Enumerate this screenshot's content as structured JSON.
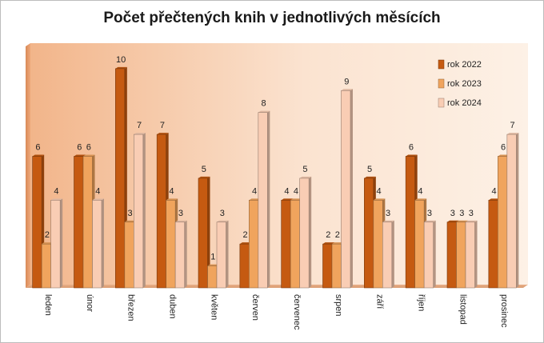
{
  "chart_data": {
    "type": "bar",
    "title": "Počet přečtených knih v jednotlivých měsících",
    "xlabel": "",
    "ylabel": "",
    "ylim": [
      0,
      10
    ],
    "grid": false,
    "legend_position": "top-right",
    "categories": [
      "leden",
      "únor",
      "březen",
      "duben",
      "květen",
      "červen",
      "červenec",
      "srpen",
      "září",
      "říjen",
      "listopad",
      "prosinec"
    ],
    "series": [
      {
        "name": "rok 2022",
        "color": "#c55a11",
        "values": [
          6,
          6,
          10,
          7,
          5,
          2,
          4,
          2,
          5,
          6,
          3,
          4
        ]
      },
      {
        "name": "rok 2023",
        "color": "#f0a45d",
        "values": [
          2,
          6,
          3,
          4,
          1,
          4,
          4,
          2,
          4,
          4,
          3,
          6
        ]
      },
      {
        "name": "rok 2024",
        "color": "#f9cdb4",
        "values": [
          4,
          4,
          7,
          3,
          3,
          8,
          5,
          9,
          3,
          3,
          3,
          7
        ]
      }
    ]
  }
}
